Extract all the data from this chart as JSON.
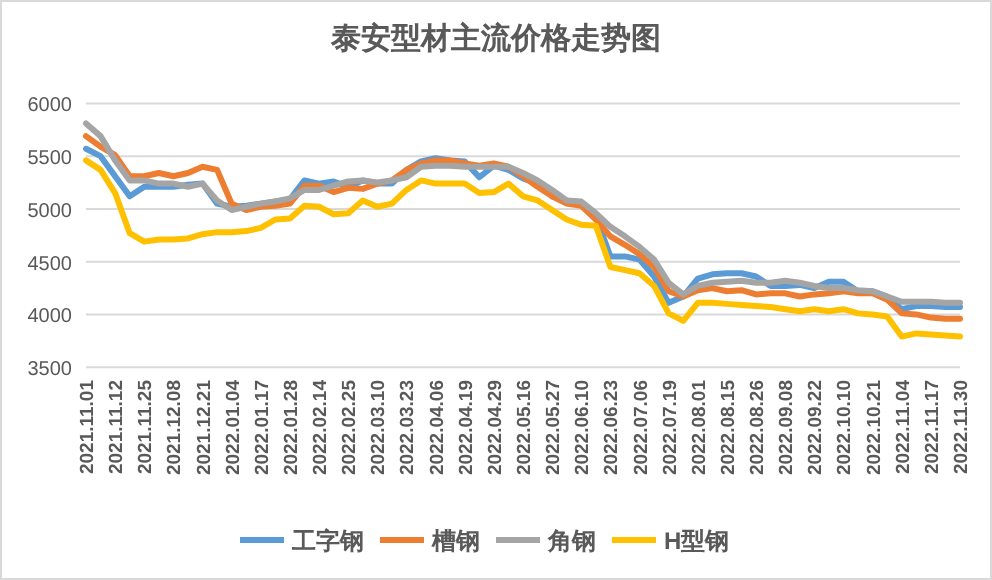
{
  "chart_data": {
    "type": "line",
    "title": "泰安型材主流价格走势图",
    "categories": [
      "2021.11.01",
      null,
      "2021.11.12",
      null,
      "2021.11.25",
      null,
      "2021.12.08",
      null,
      "2021.12.21",
      null,
      "2022.01.04",
      null,
      "2022.01.17",
      null,
      "2022.01.28",
      null,
      "2022.02.14",
      null,
      "2022.02.25",
      null,
      "2022.03.10",
      null,
      "2022.03.23",
      null,
      "2022.04.06",
      null,
      "2022.04.19",
      null,
      "2022.04.29",
      null,
      "2022.05.16",
      null,
      "2022.05.27",
      null,
      "2022.06.10",
      null,
      "2022.06.23",
      null,
      "2022.07.06",
      null,
      "2022.07.19",
      null,
      "2022.08.01",
      null,
      "2022.08.15",
      null,
      "2022.08.26",
      null,
      "2022.09.08",
      null,
      "2022.09.22",
      null,
      "2022.10.10",
      null,
      "2022.10.21",
      null,
      "2022.11.04",
      null,
      "2022.11.17",
      null,
      "2022.11.30"
    ],
    "series": [
      {
        "name": "工字钢",
        "color": "#5b9bd5",
        "values": [
          5570,
          5500,
          5310,
          5120,
          5210,
          5210,
          5210,
          5230,
          5240,
          5050,
          5020,
          5030,
          5050,
          5070,
          5090,
          5270,
          5240,
          5260,
          5210,
          5270,
          5240,
          5240,
          5370,
          5450,
          5480,
          5460,
          5450,
          5300,
          5410,
          5370,
          5290,
          5240,
          5120,
          5080,
          5050,
          4930,
          4550,
          4550,
          4520,
          4360,
          4110,
          4170,
          4340,
          4380,
          4390,
          4390,
          4360,
          4270,
          4270,
          4280,
          4250,
          4310,
          4310,
          4220,
          4220,
          4170,
          4050,
          4080,
          4080,
          4070,
          4070
        ]
      },
      {
        "name": "槽钢",
        "color": "#ed7d31",
        "values": [
          5690,
          5590,
          5510,
          5310,
          5310,
          5340,
          5310,
          5340,
          5400,
          5370,
          5050,
          4990,
          5020,
          5030,
          5050,
          5220,
          5220,
          5160,
          5200,
          5190,
          5240,
          5270,
          5370,
          5430,
          5460,
          5460,
          5430,
          5410,
          5430,
          5400,
          5310,
          5210,
          5120,
          5050,
          5030,
          4900,
          4740,
          4660,
          4570,
          4450,
          4220,
          4170,
          4230,
          4250,
          4220,
          4230,
          4190,
          4200,
          4200,
          4170,
          4190,
          4200,
          4220,
          4200,
          4200,
          4140,
          4010,
          4000,
          3970,
          3960,
          3960
        ]
      },
      {
        "name": "角钢",
        "color": "#a5a5a5",
        "values": [
          5810,
          5690,
          5460,
          5270,
          5270,
          5240,
          5240,
          5210,
          5240,
          5080,
          4990,
          5020,
          5050,
          5070,
          5100,
          5180,
          5180,
          5220,
          5260,
          5270,
          5250,
          5270,
          5300,
          5400,
          5410,
          5410,
          5400,
          5400,
          5400,
          5400,
          5340,
          5270,
          5180,
          5080,
          5070,
          4960,
          4830,
          4740,
          4640,
          4520,
          4300,
          4190,
          4270,
          4300,
          4310,
          4320,
          4300,
          4300,
          4320,
          4300,
          4270,
          4250,
          4250,
          4230,
          4220,
          4170,
          4120,
          4120,
          4120,
          4110,
          4110
        ]
      },
      {
        "name": "H型钢",
        "color": "#ffc000",
        "values": [
          5460,
          5370,
          5150,
          4770,
          4690,
          4710,
          4710,
          4720,
          4760,
          4780,
          4780,
          4790,
          4820,
          4900,
          4910,
          5030,
          5020,
          4950,
          4960,
          5080,
          5020,
          5050,
          5180,
          5270,
          5240,
          5240,
          5240,
          5150,
          5160,
          5240,
          5120,
          5080,
          4990,
          4900,
          4850,
          4840,
          4450,
          4420,
          4390,
          4270,
          4010,
          3940,
          4110,
          4110,
          4100,
          4090,
          4080,
          4070,
          4050,
          4030,
          4050,
          4030,
          4050,
          4010,
          4000,
          3980,
          3790,
          3820,
          3810,
          3800,
          3790
        ]
      }
    ],
    "ylim": [
      3500,
      6000
    ],
    "yticks": [
      3500,
      4000,
      4500,
      5000,
      5500,
      6000
    ],
    "grid": "y",
    "legend": "bottom"
  }
}
